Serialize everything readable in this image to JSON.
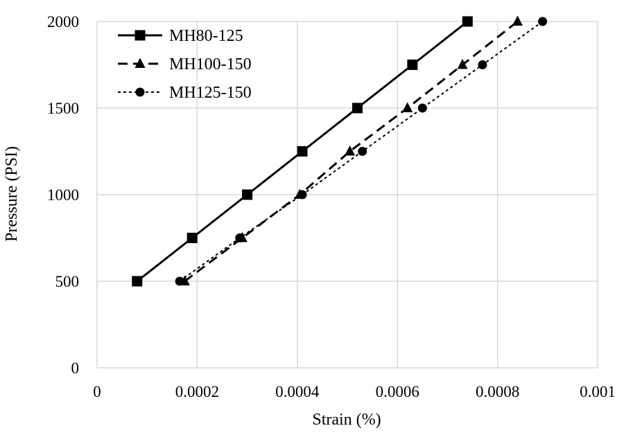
{
  "chart_data": {
    "type": "line",
    "title": "",
    "xlabel": "Strain (%)",
    "ylabel": "Pressure (PSI)",
    "xlim": [
      0,
      0.001
    ],
    "ylim": [
      0,
      2000
    ],
    "x_ticks": [
      0,
      0.0002,
      0.0004,
      0.0006,
      0.0008,
      0.001
    ],
    "x_tick_labels": [
      "0",
      "0.0002",
      "0.0004",
      "0.0006",
      "0.0008",
      "0.001"
    ],
    "y_ticks": [
      0,
      500,
      1000,
      1500,
      2000
    ],
    "y_tick_labels": [
      "0",
      "500",
      "1000",
      "1500",
      "2000"
    ],
    "grid": true,
    "legend_position": "top-left",
    "series": [
      {
        "name": "MH80-125",
        "line_style": "solid",
        "marker": "square",
        "color": "#000000",
        "points": [
          {
            "x": 8e-05,
            "y": 500
          },
          {
            "x": 0.00019,
            "y": 750
          },
          {
            "x": 0.0003,
            "y": 1000
          },
          {
            "x": 0.00041,
            "y": 1250
          },
          {
            "x": 0.00052,
            "y": 1500
          },
          {
            "x": 0.00063,
            "y": 1750
          },
          {
            "x": 0.00074,
            "y": 2000
          }
        ]
      },
      {
        "name": "MH100-150",
        "line_style": "dashed",
        "marker": "triangle",
        "color": "#000000",
        "points": [
          {
            "x": 0.000175,
            "y": 500
          },
          {
            "x": 0.00029,
            "y": 750
          },
          {
            "x": 0.000405,
            "y": 1000
          },
          {
            "x": 0.000505,
            "y": 1250
          },
          {
            "x": 0.00062,
            "y": 1500
          },
          {
            "x": 0.00073,
            "y": 1750
          },
          {
            "x": 0.00084,
            "y": 2000
          }
        ]
      },
      {
        "name": "MH125-150",
        "line_style": "dotted",
        "marker": "circle",
        "color": "#000000",
        "points": [
          {
            "x": 0.000165,
            "y": 500
          },
          {
            "x": 0.000285,
            "y": 750
          },
          {
            "x": 0.00041,
            "y": 1000
          },
          {
            "x": 0.00053,
            "y": 1250
          },
          {
            "x": 0.00065,
            "y": 1500
          },
          {
            "x": 0.00077,
            "y": 1750
          },
          {
            "x": 0.00089,
            "y": 2000
          }
        ]
      }
    ]
  }
}
